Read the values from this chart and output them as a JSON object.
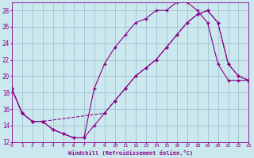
{
  "xlabel": "Windchill (Refroidissement éolien,°C)",
  "bg_color": "#cce8ef",
  "line_color": "#880088",
  "grid_color": "#99bbcc",
  "xmin": 0,
  "xmax": 23,
  "ymin": 12,
  "ymax": 29,
  "yticks": [
    12,
    14,
    16,
    18,
    20,
    22,
    24,
    26,
    28
  ],
  "xticks": [
    0,
    1,
    2,
    3,
    4,
    5,
    6,
    7,
    8,
    9,
    10,
    11,
    12,
    13,
    14,
    15,
    16,
    17,
    18,
    19,
    20,
    21,
    22,
    23
  ],
  "line1_x": [
    0,
    1,
    2,
    3,
    4,
    5,
    6,
    7,
    8,
    9,
    10,
    11,
    12,
    13,
    14,
    15,
    16,
    17,
    18,
    19,
    20,
    21,
    22,
    23
  ],
  "line1_y": [
    18.5,
    15.5,
    14.5,
    14.5,
    13.5,
    13.0,
    12.5,
    12.5,
    18.5,
    21.5,
    23.5,
    25.0,
    26.5,
    27.0,
    28.0,
    28.0,
    29.0,
    29.0,
    28.0,
    26.5,
    21.5,
    19.5,
    19.5,
    19.5
  ],
  "line2_x": [
    0,
    1,
    2,
    3,
    4,
    5,
    6,
    7,
    8,
    9,
    10,
    11,
    12,
    13,
    14,
    15,
    16,
    17,
    18,
    19,
    20,
    21,
    22,
    23
  ],
  "line2_y": [
    18.5,
    15.5,
    14.5,
    14.5,
    13.5,
    13.0,
    12.5,
    12.5,
    14.0,
    15.5,
    17.0,
    18.5,
    20.0,
    21.0,
    22.0,
    23.5,
    25.0,
    26.5,
    27.5,
    28.0,
    26.5,
    21.5,
    20.0,
    19.5
  ],
  "line3_x": [
    0,
    1,
    2,
    3,
    9,
    10,
    11,
    12,
    13,
    14,
    15,
    16,
    17,
    18,
    19,
    20,
    21,
    22,
    23
  ],
  "line3_y": [
    18.5,
    15.5,
    14.5,
    14.5,
    15.5,
    17.0,
    18.5,
    20.0,
    21.0,
    22.0,
    23.5,
    25.0,
    26.5,
    27.5,
    28.0,
    26.5,
    21.5,
    20.0,
    19.5
  ]
}
